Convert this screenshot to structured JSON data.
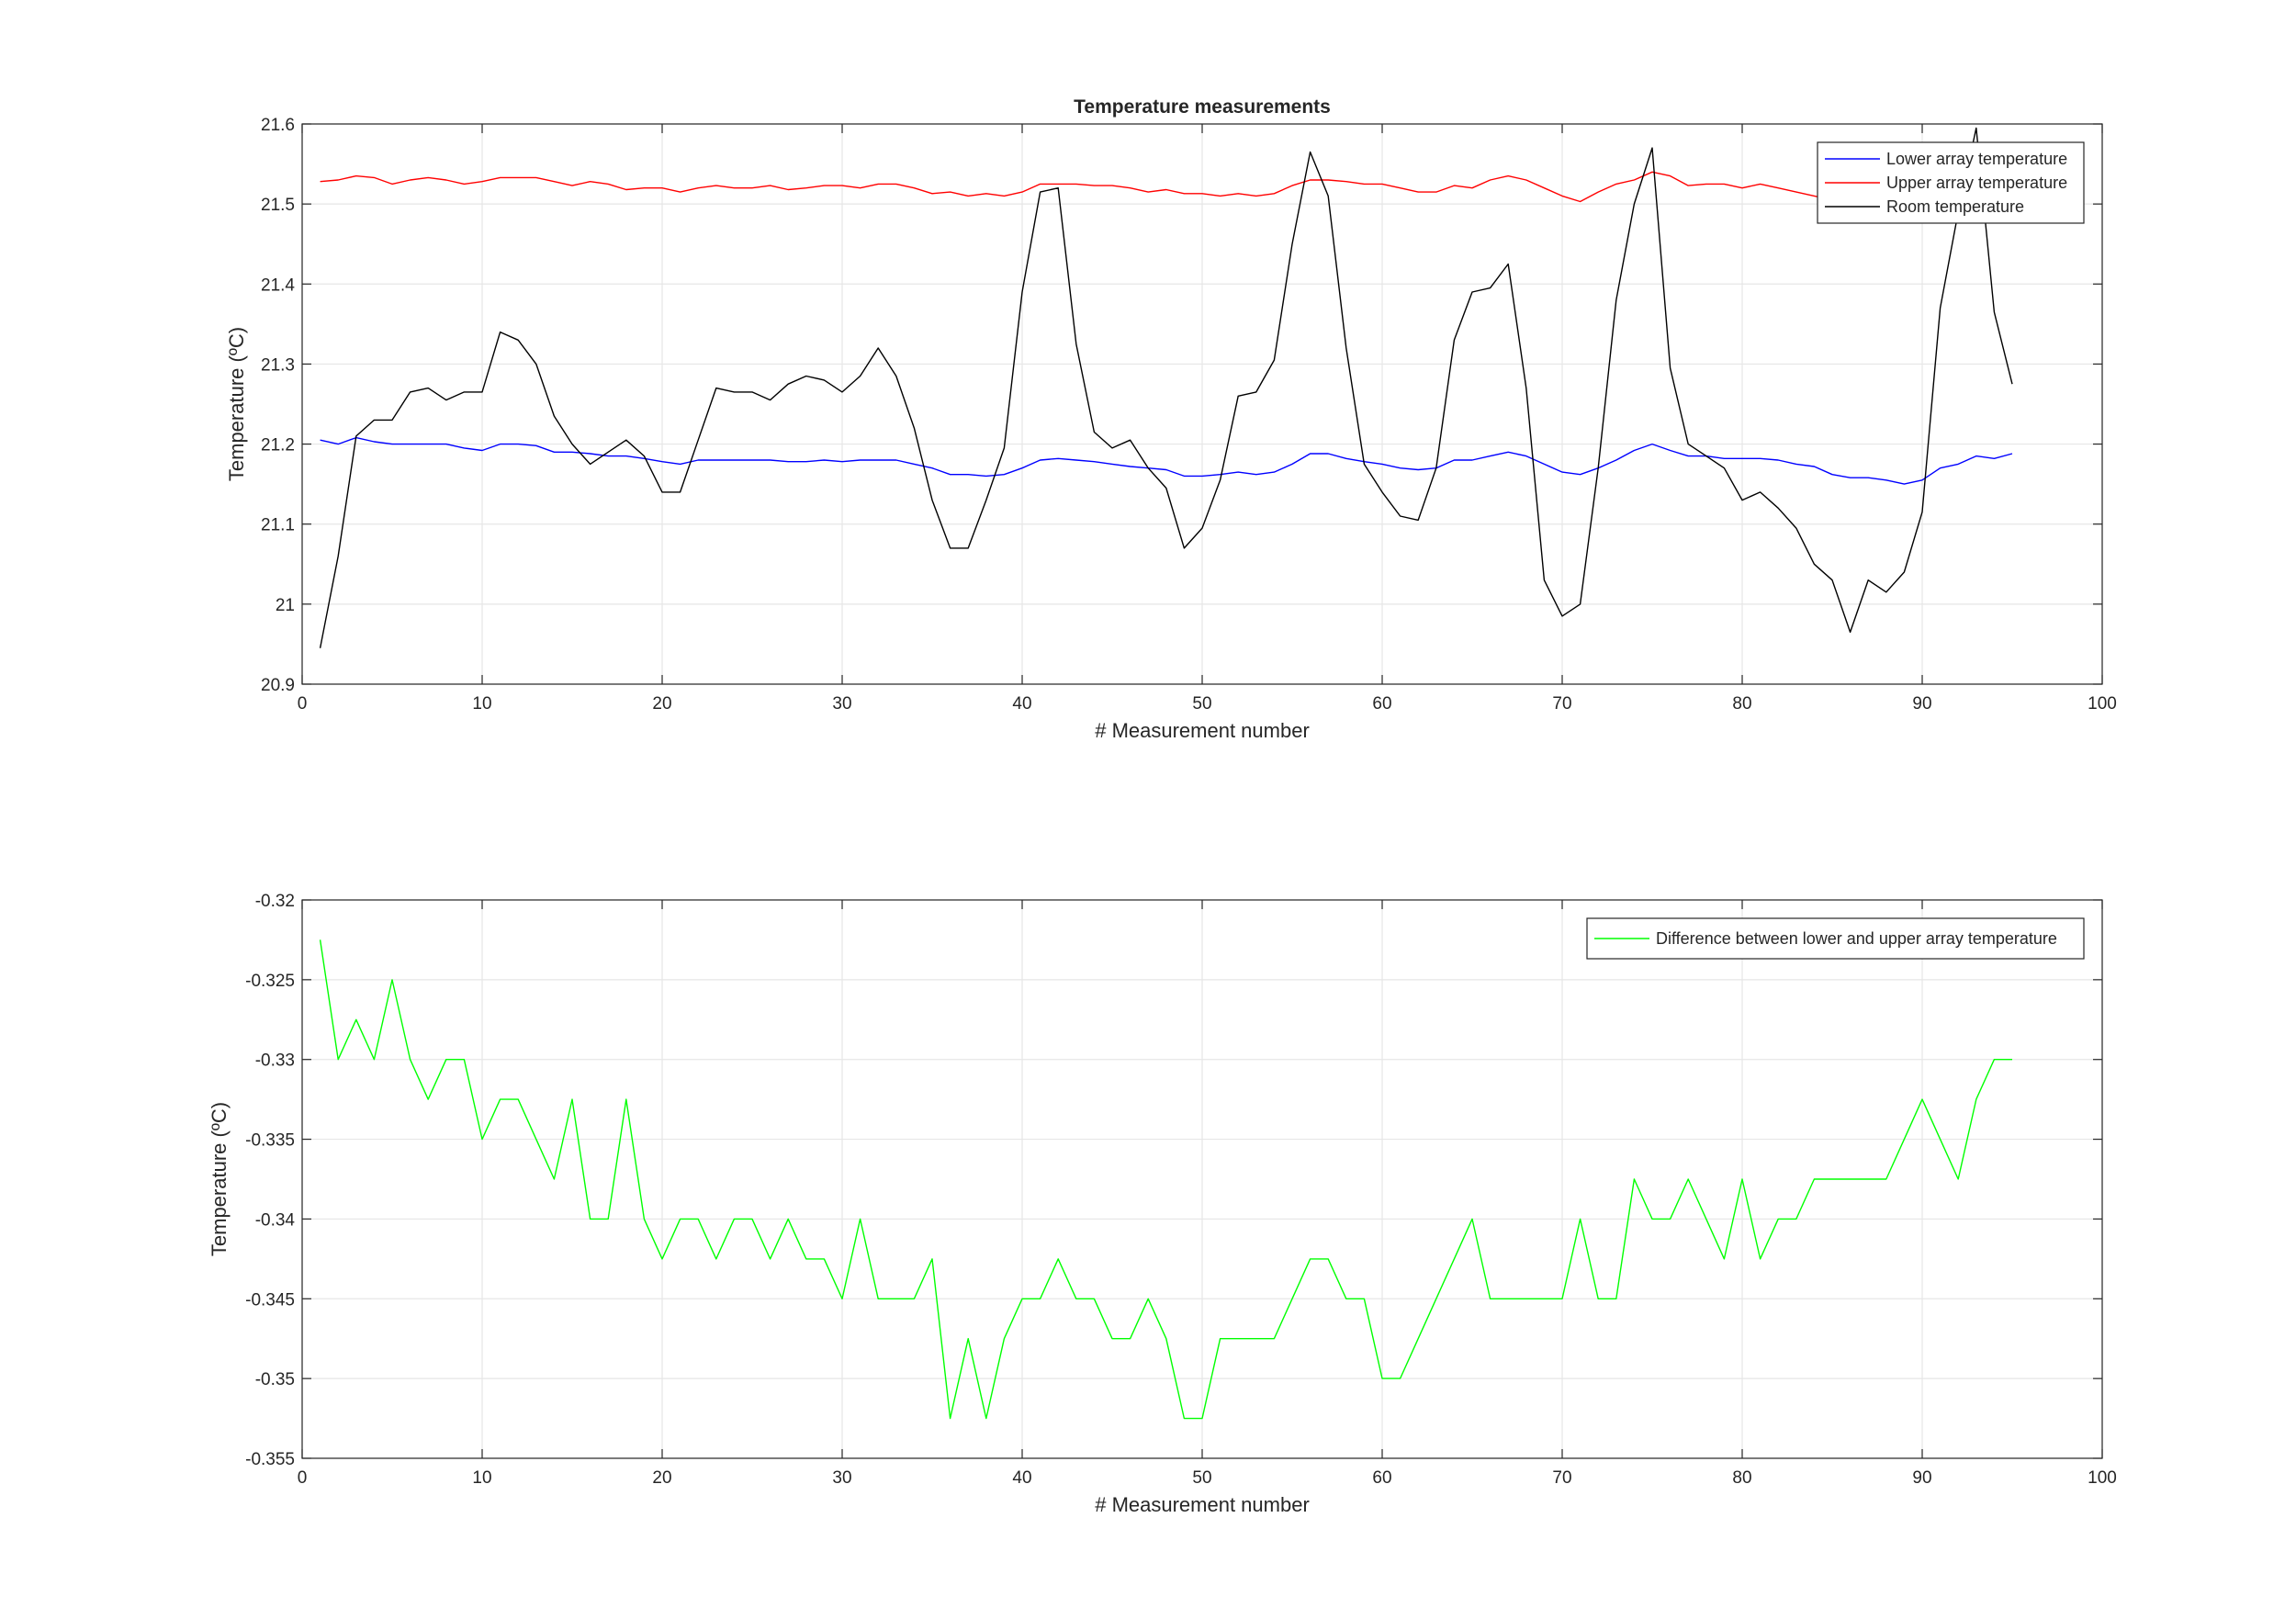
{
  "chart_data": [
    {
      "type": "line",
      "title": "Temperature measurements",
      "xlabel": "# Measurement number",
      "ylabel": "Temperature (ºC)",
      "xlim": [
        0,
        100
      ],
      "ylim": [
        20.9,
        21.6
      ],
      "x_ticks": [
        0,
        10,
        20,
        30,
        40,
        50,
        60,
        70,
        80,
        90,
        100
      ],
      "y_ticks": [
        20.9,
        21,
        21.1,
        21.2,
        21.3,
        21.4,
        21.5,
        21.6
      ],
      "x_tick_labels": [
        "0",
        "10",
        "20",
        "30",
        "40",
        "50",
        "60",
        "70",
        "80",
        "90",
        "100"
      ],
      "y_tick_labels": [
        "20.9",
        "21",
        "21.1",
        "21.2",
        "21.3",
        "21.4",
        "21.5",
        "21.6"
      ],
      "grid": true,
      "legend_position": "top-right",
      "series": [
        {
          "name": "Lower array temperature",
          "color": "#0000ff",
          "values": [
            21.205,
            21.2,
            21.208,
            21.203,
            21.2,
            21.2,
            21.2,
            21.2,
            21.195,
            21.192,
            21.2,
            21.2,
            21.198,
            21.19,
            21.19,
            21.188,
            21.185,
            21.185,
            21.182,
            21.178,
            21.175,
            21.18,
            21.18,
            21.18,
            21.18,
            21.18,
            21.178,
            21.178,
            21.18,
            21.178,
            21.18,
            21.18,
            21.18,
            21.175,
            21.17,
            21.162,
            21.162,
            21.16,
            21.162,
            21.17,
            21.18,
            21.182,
            21.18,
            21.178,
            21.175,
            21.172,
            21.17,
            21.168,
            21.16,
            21.16,
            21.162,
            21.165,
            21.162,
            21.165,
            21.175,
            21.188,
            21.188,
            21.182,
            21.178,
            21.175,
            21.17,
            21.168,
            21.17,
            21.18,
            21.18,
            21.185,
            21.19,
            21.185,
            21.175,
            21.165,
            21.162,
            21.17,
            21.18,
            21.192,
            21.2,
            21.192,
            21.185,
            21.185,
            21.182,
            21.182,
            21.182,
            21.18,
            21.175,
            21.172,
            21.162,
            21.158,
            21.158,
            21.155,
            21.15,
            21.155,
            21.17,
            21.175,
            21.185,
            21.182,
            21.188
          ]
        },
        {
          "name": "Upper array temperature",
          "color": "#ff0000",
          "values": [
            21.528,
            21.53,
            21.535,
            21.533,
            21.525,
            21.53,
            21.533,
            21.53,
            21.525,
            21.528,
            21.533,
            21.533,
            21.533,
            21.528,
            21.523,
            21.528,
            21.525,
            21.518,
            21.52,
            21.52,
            21.515,
            21.52,
            21.523,
            21.52,
            21.52,
            21.523,
            21.518,
            21.52,
            21.523,
            21.523,
            21.52,
            21.525,
            21.525,
            21.52,
            21.513,
            21.515,
            21.51,
            21.513,
            21.51,
            21.515,
            21.525,
            21.525,
            21.525,
            21.523,
            21.523,
            21.52,
            21.515,
            21.518,
            21.513,
            21.513,
            21.51,
            21.513,
            21.51,
            21.513,
            21.523,
            21.53,
            21.53,
            21.528,
            21.525,
            21.525,
            21.52,
            21.515,
            21.515,
            21.523,
            21.52,
            21.53,
            21.535,
            21.53,
            21.52,
            21.51,
            21.503,
            21.515,
            21.525,
            21.53,
            21.54,
            21.535,
            21.523,
            21.525,
            21.525,
            21.52,
            21.525,
            21.52,
            21.515,
            21.51,
            21.505,
            21.5,
            21.505,
            21.505,
            21.5,
            21.505,
            21.52,
            21.52,
            21.525,
            21.525,
            21.525
          ]
        },
        {
          "name": "Room temperature",
          "color": "#000000",
          "values": [
            20.945,
            21.06,
            21.21,
            21.23,
            21.23,
            21.265,
            21.27,
            21.255,
            21.265,
            21.265,
            21.34,
            21.33,
            21.3,
            21.235,
            21.2,
            21.175,
            21.19,
            21.205,
            21.185,
            21.14,
            21.14,
            21.205,
            21.27,
            21.265,
            21.265,
            21.255,
            21.275,
            21.285,
            21.28,
            21.265,
            21.285,
            21.32,
            21.285,
            21.22,
            21.13,
            21.07,
            21.07,
            21.13,
            21.195,
            21.39,
            21.515,
            21.52,
            21.325,
            21.215,
            21.195,
            21.205,
            21.17,
            21.145,
            21.07,
            21.095,
            21.155,
            21.26,
            21.265,
            21.305,
            21.45,
            21.565,
            21.51,
            21.32,
            21.175,
            21.14,
            21.11,
            21.105,
            21.17,
            21.33,
            21.39,
            21.395,
            21.425,
            21.27,
            21.03,
            20.985,
            21.0,
            21.17,
            21.38,
            21.5,
            21.57,
            21.295,
            21.2,
            21.185,
            21.17,
            21.13,
            21.14,
            21.12,
            21.095,
            21.05,
            21.03,
            20.965,
            21.03,
            21.015,
            21.04,
            21.115,
            21.37,
            21.49,
            21.595,
            21.365,
            21.275
          ]
        }
      ]
    },
    {
      "type": "line",
      "title": "",
      "xlabel": "# Measurement number",
      "ylabel": "Temperature (ºC)",
      "xlim": [
        0,
        100
      ],
      "ylim": [
        -0.355,
        -0.32
      ],
      "x_ticks": [
        0,
        10,
        20,
        30,
        40,
        50,
        60,
        70,
        80,
        90,
        100
      ],
      "y_ticks": [
        -0.355,
        -0.35,
        -0.345,
        -0.34,
        -0.335,
        -0.33,
        -0.325,
        -0.32
      ],
      "x_tick_labels": [
        "0",
        "10",
        "20",
        "30",
        "40",
        "50",
        "60",
        "70",
        "80",
        "90",
        "100"
      ],
      "y_tick_labels": [
        "-0.355",
        "-0.35",
        "-0.345",
        "-0.34",
        "-0.335",
        "-0.33",
        "-0.325",
        "-0.32"
      ],
      "grid": true,
      "legend_position": "top-right",
      "series": [
        {
          "name": "Difference between lower and upper array temperature",
          "color": "#00ff00",
          "values": [
            -0.3225,
            -0.33,
            -0.3275,
            -0.33,
            -0.325,
            -0.33,
            -0.3325,
            -0.33,
            -0.33,
            -0.335,
            -0.3325,
            -0.3325,
            -0.335,
            -0.3375,
            -0.3325,
            -0.34,
            -0.34,
            -0.3325,
            -0.34,
            -0.3425,
            -0.34,
            -0.34,
            -0.3425,
            -0.34,
            -0.34,
            -0.3425,
            -0.34,
            -0.3425,
            -0.3425,
            -0.345,
            -0.34,
            -0.345,
            -0.345,
            -0.345,
            -0.3425,
            -0.3525,
            -0.3475,
            -0.3525,
            -0.3475,
            -0.345,
            -0.345,
            -0.3425,
            -0.345,
            -0.345,
            -0.3475,
            -0.3475,
            -0.345,
            -0.3475,
            -0.3525,
            -0.3525,
            -0.3475,
            -0.3475,
            -0.3475,
            -0.3475,
            -0.345,
            -0.3425,
            -0.3425,
            -0.345,
            -0.345,
            -0.35,
            -0.35,
            -0.3475,
            -0.345,
            -0.3425,
            -0.34,
            -0.345,
            -0.345,
            -0.345,
            -0.345,
            -0.345,
            -0.34,
            -0.345,
            -0.345,
            -0.3375,
            -0.34,
            -0.34,
            -0.3375,
            -0.34,
            -0.3425,
            -0.3375,
            -0.3425,
            -0.34,
            -0.34,
            -0.3375,
            -0.3375,
            -0.3375,
            -0.3375,
            -0.3375,
            -0.335,
            -0.3325,
            -0.335,
            -0.3375,
            -0.3325,
            -0.33,
            -0.33
          ]
        }
      ]
    }
  ]
}
